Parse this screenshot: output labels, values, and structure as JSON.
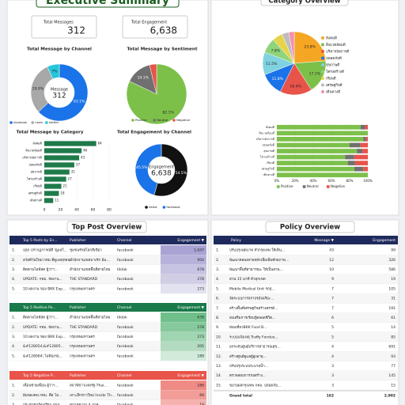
{
  "header": {
    "title": "Executive Summary"
  },
  "kpis": [
    {
      "label": "Total Messages",
      "value": "312"
    },
    {
      "label": "Total Engagement",
      "value": "6,638"
    }
  ],
  "chart_data": [
    {
      "type": "pie",
      "title": "Total Message by Channel",
      "hole": true,
      "center_label": "Message",
      "center_value": "312",
      "categories": [
        "facebook",
        "news",
        "twitter"
      ],
      "values": [
        63.1,
        29.9,
        7.0
      ],
      "value_labels": [
        "63.1%",
        "29.9%",
        "7%"
      ],
      "colors": [
        "#1a73e8",
        "#a8a8a8",
        "#26c6da"
      ],
      "legend": "bottom"
    },
    {
      "type": "pie",
      "title": "Total Message by Sentiment",
      "hole": false,
      "categories": [
        "Positive",
        "Neutral",
        "Negative"
      ],
      "values": [
        82.1,
        14.1,
        3.8
      ],
      "value_labels": [
        "82.1%",
        "14.1%",
        null
      ],
      "colors": [
        "#7cc04a",
        "#707070",
        "#e8534a"
      ],
      "legend": "bottom"
    },
    {
      "type": "hbar",
      "title": "Total Message by Category",
      "categories": [
        "สังคมดี",
        "สิ่งแวดล้อมดี",
        "บริหารจัดการดี",
        "ปลอดภัยดี",
        "สุขภาพดี",
        "โครงสร้างดี",
        "เรียนดี",
        "เศรษฐกิจดี",
        "เดินทางดี"
      ],
      "values": [
        64,
        46,
        43,
        37,
        31,
        27,
        21,
        18,
        11
      ],
      "color": "#1e7a4a",
      "xlim": [
        0,
        80
      ],
      "xticks": [
        0,
        20,
        40,
        60,
        80
      ]
    },
    {
      "type": "pie",
      "title": "Total Engagement by Channel",
      "hole": true,
      "center_label": "Engagement",
      "center_value": "6,638",
      "categories": [
        "tiktok",
        "facebook"
      ],
      "values": [
        54.5,
        45.5
      ],
      "value_labels": [
        "54.5%",
        "45.5%"
      ],
      "colors": [
        "#111111",
        "#1a73e8"
      ],
      "legend": "bottom"
    },
    {
      "type": "pie",
      "title": "Category Overview",
      "hole": false,
      "categories": [
        "สังคมดี",
        "สิ่งแวดล้อมดี",
        "บริหารจัดการดี",
        "ปลอดภัยดี",
        "สุขภาพดี",
        "โครงสร้างดี",
        "เรียนดี",
        "เศรษฐกิจดี",
        "เดินทางดี"
      ],
      "values": [
        23.8,
        17.1,
        16.4,
        11.8,
        11.5,
        7.8,
        5.3,
        3.5,
        2.8
      ],
      "value_labels": [
        "23.8%",
        "17.1%",
        "16.4%",
        "11.8%",
        "11.5%",
        "7.8%",
        null,
        null,
        null
      ],
      "colors": [
        "#f5a623",
        "#7cc04a",
        "#e8534a",
        "#1a73e8",
        "#7fd3e0",
        "#8fd47a",
        "#e6d34a",
        "#bdbdbd",
        "#f48fb1"
      ],
      "legend": "right"
    },
    {
      "type": "stacked_hbar",
      "categories": [
        "สังคมดี",
        "สิ่งแวดล้อมดี",
        "บริหารจัดการดี",
        "ปลอดภัยดี",
        "สุขภาพดี",
        "โครงสร้างดี",
        "เรียนดี",
        "เศรษฐกิจดี",
        "เดินทางดี"
      ],
      "series": [
        {
          "name": "Positive",
          "color": "#7cc04a",
          "values": [
            92,
            100,
            95,
            80,
            88,
            75,
            78,
            85,
            100
          ]
        },
        {
          "name": "Neutral",
          "color": "#707070",
          "values": [
            5,
            0,
            3,
            12,
            6,
            10,
            8,
            10,
            0
          ]
        },
        {
          "name": "Negative",
          "color": "#e8534a",
          "values": [
            3,
            0,
            2,
            8,
            6,
            15,
            14,
            5,
            0
          ]
        }
      ],
      "xlim": [
        0,
        100
      ],
      "xticks": [
        {
          "value": 0,
          "label": "0%"
        },
        {
          "value": 20,
          "label": "20%"
        },
        {
          "value": 40,
          "label": "40%"
        },
        {
          "value": 60,
          "label": "60%"
        },
        {
          "value": 80,
          "label": "80%"
        },
        {
          "value": 100,
          "label": "100%"
        }
      ],
      "legend": "bottom"
    }
  ],
  "sections": {
    "posts": "Top Post Overview",
    "policy": "Policy Overview"
  },
  "tables": {
    "top_posts": {
      "columns": [
        "Top 5 Posts by En...",
        "Publisher",
        "Channel",
        "Engagement ▼"
      ],
      "rows": [
        [
          "1.",
          "ปลุก ปรากฏการณ์ที่ 'ดูแลใ...",
          "ชุมชนรักษ์โลกสีเขียว",
          "facebook",
          "1,047"
        ],
        [
          "2.",
          "สวัสดีวันใหม่ กทม.ที่ดูแลทุกคน...",
          "สำนักงานเขตบางรัก Ba...",
          "facebook",
          "950"
        ],
        [
          "3.",
          "ติดตามไลฟ์สด ผู้ว่าฯ...",
          "สำนักงานเขตพื้นที่สายไหม",
          "tiktok",
          "678"
        ],
        [
          "4.",
          "UPDATE: กทม. จัดงาน...",
          "THE STANDARD",
          "facebook",
          "278"
        ],
        [
          "5.",
          "10 ผลงาน ของ BKK Exp...",
          "กรุงเทพมหานคร",
          "facebook",
          "273"
        ]
      ]
    },
    "positive_posts": {
      "columns": [
        "Top 5 Positive Po...",
        "Publisher",
        "Channel",
        "Engagement ▼"
      ],
      "rows": [
        [
          "1.",
          "ติดตามไลฟ์สด ผู้ว่าฯ...",
          "สำนักงานเขตพื้นที่สายไหม",
          "tiktok",
          "678"
        ],
        [
          "2.",
          "UPDATE: กทม. จัดงาน...",
          "THE STANDARD",
          "facebook",
          "278"
        ],
        [
          "3.",
          "10 ผลงาน ของ BKK Exp...",
          "กรุงเทพมหานคร",
          "facebook",
          "273"
        ],
        [
          "4.",
          "&#128054;&#12805...",
          "กรุงเทพมหานคร",
          "facebook",
          "205"
        ],
        [
          "5.",
          "&#128064; ไม่ต้องรอ...",
          "กรุงเทพมหานคร",
          "facebook",
          "189"
        ]
      ]
    },
    "negative_posts": {
      "columns": [
        "Top 5 Negative P...",
        "Publisher",
        "Channel",
        "Engagement ▼"
      ],
      "rows": [
        [
          "1.",
          "เพื่อนช่วยเพื่อน ผู้ว่าฯ...",
          "สถานีข่าวแห่งรัฐ-Thai...",
          "facebook",
          "189"
        ],
        [
          "2.",
          "ฝันของคน กทม. คือ ไม่...",
          "เจาะลึกข่าวใหม่ Inside Th...",
          "facebook",
          "69"
        ],
        [
          "3.",
          "ประชาชนร้องเรียน ถนน...",
          "ทนายความ 4 ภาค",
          "facebook",
          "19"
        ]
      ]
    },
    "policy": {
      "columns": [
        "Policy",
        "Message ▼",
        "Engagement"
      ],
      "rows": [
        [
          "1.",
          "ปรับปรุงฟุตบาท ทั่วกรุงเทพ ให้เดิน...",
          "43",
          "99"
        ],
        [
          "2.",
          "พัฒนาคลองสายหลักเพื่อเพิ่มศักยภาพ...",
          "12",
          "326"
        ],
        [
          "3.",
          "พัฒนาพื้นที่สาธารณะ ให้เป็นสวน...",
          "10",
          "586"
        ],
        [
          "4.",
          "สวน 15 นาที ทั่วทุกเขต",
          "9",
          "19"
        ],
        [
          "5.",
          "Mobile Medical Unit รถสุ...",
          "7",
          "105"
        ],
        [
          "6.",
          "จัดระบบการจราจรอัจฉริยะ...",
          "7",
          "31"
        ],
        [
          "7.",
          "สร้างพื้นที่เศรษฐกิจสร้างสรรค์...",
          "7",
          "191"
        ],
        [
          "8.",
          "ส่งเสริมการเรียนรู้ตลอดชีวิต...",
          "6",
          "61"
        ],
        [
          "9.",
          "ท่องเที่ยวBKK Food B...",
          "5",
          "14"
        ],
        [
          "10.",
          "ระบบแจ้งเหตุ Traffy Fondue...",
          "5",
          "85"
        ],
        [
          "11.",
          "ยกระดับศูนย์บริการสาธารณสุข...",
          "4",
          "691"
        ],
        [
          "12.",
          "สร้างศูนย์ดูแลผู้สูงอายุ...",
          "4",
          "93"
        ],
        [
          "13.",
          "ปรับปรุงระบบระบายน้ำ...",
          "3",
          "77"
        ],
        [
          "14.",
          "ตรวจสอบการก่อสร้าง...",
          "3",
          "145"
        ],
        [
          "15.",
          "ขยายผลกรุงเทพ กทม. ปลอดภัย...",
          "3",
          "15"
        ]
      ],
      "total": [
        "Grand total",
        "162",
        "2,902"
      ]
    }
  }
}
